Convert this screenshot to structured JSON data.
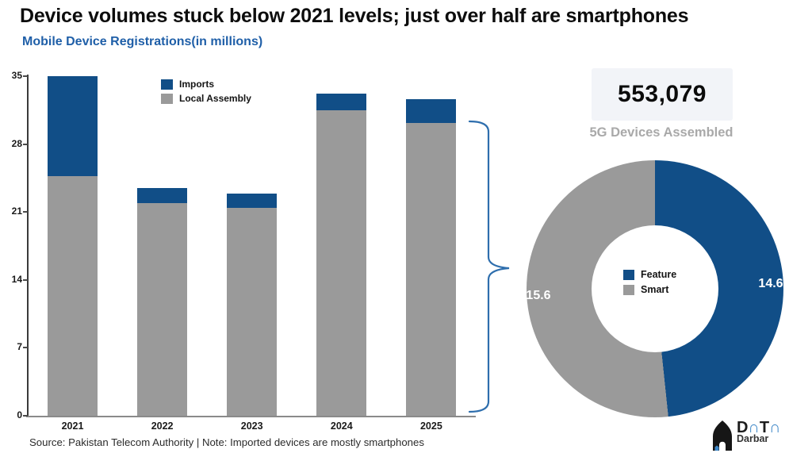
{
  "title": "Device volumes stuck below 2021 levels; just over half are smartphones",
  "subtitle": "Mobile Device Registrations(in millions)",
  "colors": {
    "bar_blue": "#114E87",
    "bar_gray": "#9A9A9A",
    "subtitle_blue": "#1F5FA8",
    "bracket_blue": "#2E6EAD",
    "stat_box_bg": "#F2F4F8",
    "stat_label_gray": "#A9A9A9",
    "logo_blue": "#3D87C8"
  },
  "chart_data": [
    {
      "type": "bar",
      "stacked": true,
      "title": "Mobile Device Registrations(in millions)",
      "categories": [
        "2021",
        "2022",
        "2023",
        "2024",
        "2025"
      ],
      "series": [
        {
          "name": "Imports",
          "color": "#114E87",
          "values": [
            10.3,
            1.6,
            1.5,
            1.7,
            2.4
          ]
        },
        {
          "name": "Local Assembly",
          "color": "#9A9A9A",
          "values": [
            24.7,
            21.9,
            21.4,
            31.5,
            30.2
          ]
        }
      ],
      "totals": [
        35.0,
        23.5,
        22.9,
        33.2,
        32.6
      ],
      "ylim": [
        0,
        35
      ],
      "yticks": [
        0,
        7,
        14,
        21,
        28,
        35
      ],
      "grid": false,
      "legend_position": "top-center"
    },
    {
      "type": "donut",
      "labels": [
        "Feature",
        "Smart"
      ],
      "values": [
        14.6,
        15.6
      ],
      "colors": [
        "#114E87",
        "#9A9A9A"
      ],
      "start_angle_deg": 0,
      "legend_position": "center"
    }
  ],
  "stat": {
    "value": "553,079",
    "label": "5G Devices Assembled"
  },
  "annotation": {
    "bracket_target": "2025 local assembly split into donut"
  },
  "footer": {
    "source": "Source: Pakistan Telecom Authority | Note: Imported devices are mostly smartphones"
  },
  "logo": {
    "parts": [
      "D",
      "∩",
      "T",
      "∩"
    ],
    "line2": "Darbar"
  }
}
